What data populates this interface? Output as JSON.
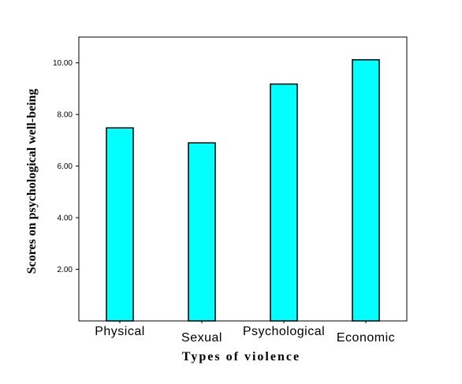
{
  "chart_data": {
    "type": "bar",
    "categories": [
      "Physical",
      "Sexual",
      "Psychological",
      "Economic"
    ],
    "values": [
      7.48,
      6.9,
      9.18,
      10.12
    ],
    "xlabel": "Types of violence",
    "ylabel": "Scores on psychological well-being",
    "ylim": [
      0,
      11.0
    ],
    "yticks": [
      "2.00",
      "4.00",
      "6.00",
      "8.00",
      "10.00"
    ],
    "ytick_values": [
      2,
      4,
      6,
      8,
      10
    ],
    "bar_color": "#00ffff",
    "bar_edge_color": "#000000",
    "grid": false,
    "legend": "none"
  }
}
